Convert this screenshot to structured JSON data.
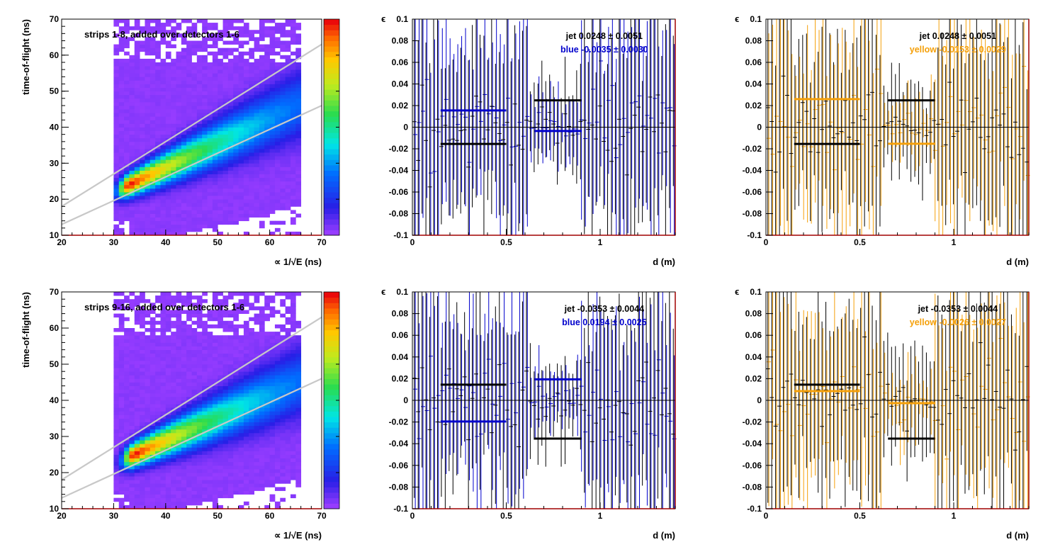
{
  "figure": {
    "rows": [
      {
        "heatmap": {
          "title": "strips 1-8, added over detectors 1-6",
          "xlabel": "∝ 1/√E (ns)",
          "ylabel": "time-of-flight (ns)"
        },
        "panels": [
          {
            "jet_label": "jet  0.0248 ± 0.0051",
            "beam_label": "blue -0.0035 ± 0.0030"
          },
          {
            "jet_label": "jet  0.0248 ± 0.0051",
            "beam_label": "yellow -0.0153 ± 0.0029"
          }
        ]
      },
      {
        "heatmap": {
          "title": "strips 9-16, added over detectors 1-6",
          "xlabel": "∝ 1/√E (ns)",
          "ylabel": "time-of-flight (ns)"
        },
        "panels": [
          {
            "jet_label": "jet -0.0353 ± 0.0044",
            "beam_label": "blue  0.0194 ± 0.0025"
          },
          {
            "jet_label": "jet -0.0353 ± 0.0044",
            "beam_label": "yellow -0.0026 ± 0.0027"
          }
        ]
      }
    ],
    "asym_xlabel": "d (m)",
    "asym_ylabel": "ϵ"
  },
  "chart_data": [
    {
      "type": "heatmap",
      "title": "strips 1-8, added over detectors 1-6",
      "xlabel": "∝ 1/√E (ns)",
      "ylabel": "time-of-flight (ns)",
      "xlim": [
        20,
        70
      ],
      "ylim": [
        10,
        70
      ],
      "xticks": [
        20,
        30,
        40,
        50,
        60,
        70
      ],
      "yticks": [
        10,
        20,
        30,
        40,
        50,
        60,
        70
      ],
      "populated_x_range": [
        30,
        65.5
      ],
      "band_peak": [
        33,
        24
      ],
      "band_end": [
        64,
        45
      ],
      "cut_lines": [
        {
          "from": [
            20,
            18
          ],
          "to": [
            70,
            63
          ]
        },
        {
          "from": [
            20,
            13
          ],
          "to": [
            70,
            46
          ]
        }
      ],
      "colorscale": "rainbow (violet low, red high)"
    },
    {
      "type": "scatter",
      "xlabel": "d (m)",
      "ylabel": "ϵ",
      "xlim": [
        0,
        1.4
      ],
      "ylim": [
        -0.1,
        0.1
      ],
      "xticks": [
        0,
        0.5,
        1
      ],
      "yticks": [
        -0.1,
        -0.08,
        -0.06,
        -0.04,
        -0.02,
        0,
        0.02,
        0.04,
        0.06,
        0.08,
        0.1
      ],
      "series": [
        {
          "name": "jet",
          "color": "#000000",
          "fits": [
            {
              "x": [
                0.15,
                0.5
              ],
              "y": -0.0155
            },
            {
              "x": [
                0.65,
                0.9
              ],
              "y": 0.0248
            }
          ]
        },
        {
          "name": "blue",
          "color": "#0000cc",
          "fits": [
            {
              "x": [
                0.15,
                0.5
              ],
              "y": 0.0155
            },
            {
              "x": [
                0.65,
                0.9
              ],
              "y": -0.0035
            }
          ]
        }
      ],
      "annotations": [
        "jet  0.0248 ± 0.0051",
        "blue -0.0035 ± 0.0030"
      ]
    },
    {
      "type": "scatter",
      "xlabel": "d (m)",
      "ylabel": "ϵ",
      "xlim": [
        0,
        1.4
      ],
      "ylim": [
        -0.1,
        0.1
      ],
      "xticks": [
        0,
        0.5,
        1
      ],
      "yticks": [
        -0.1,
        -0.08,
        -0.06,
        -0.04,
        -0.02,
        0,
        0.02,
        0.04,
        0.06,
        0.08,
        0.1
      ],
      "series": [
        {
          "name": "jet",
          "color": "#000000",
          "fits": [
            {
              "x": [
                0.15,
                0.5
              ],
              "y": -0.0155
            },
            {
              "x": [
                0.65,
                0.9
              ],
              "y": 0.0248
            }
          ]
        },
        {
          "name": "yellow",
          "color": "#f5a00a",
          "fits": [
            {
              "x": [
                0.15,
                0.5
              ],
              "y": 0.026
            },
            {
              "x": [
                0.65,
                0.9
              ],
              "y": -0.0153
            }
          ]
        }
      ],
      "annotations": [
        "jet  0.0248 ± 0.0051",
        "yellow -0.0153 ± 0.0029"
      ]
    },
    {
      "type": "heatmap",
      "title": "strips 9-16, added over detectors 1-6",
      "xlabel": "∝ 1/√E (ns)",
      "ylabel": "time-of-flight (ns)",
      "xlim": [
        20,
        70
      ],
      "ylim": [
        10,
        70
      ],
      "xticks": [
        20,
        30,
        40,
        50,
        60,
        70
      ],
      "yticks": [
        10,
        20,
        30,
        40,
        50,
        60,
        70
      ],
      "populated_x_range": [
        30,
        65.5
      ],
      "band_peak": [
        34,
        25
      ],
      "band_end": [
        64,
        44
      ],
      "cut_lines": [
        {
          "from": [
            20,
            18
          ],
          "to": [
            70,
            63
          ]
        },
        {
          "from": [
            20,
            13
          ],
          "to": [
            70,
            46
          ]
        }
      ],
      "colorscale": "rainbow (violet low, red high)"
    },
    {
      "type": "scatter",
      "xlabel": "d (m)",
      "ylabel": "ϵ",
      "xlim": [
        0,
        1.4
      ],
      "ylim": [
        -0.1,
        0.1
      ],
      "xticks": [
        0,
        0.5,
        1
      ],
      "yticks": [
        -0.1,
        -0.08,
        -0.06,
        -0.04,
        -0.02,
        0,
        0.02,
        0.04,
        0.06,
        0.08,
        0.1
      ],
      "series": [
        {
          "name": "jet",
          "color": "#000000",
          "fits": [
            {
              "x": [
                0.15,
                0.5
              ],
              "y": 0.0145
            },
            {
              "x": [
                0.65,
                0.9
              ],
              "y": -0.0353
            }
          ]
        },
        {
          "name": "blue",
          "color": "#0000cc",
          "fits": [
            {
              "x": [
                0.15,
                0.5
              ],
              "y": -0.0195
            },
            {
              "x": [
                0.65,
                0.9
              ],
              "y": 0.0194
            }
          ]
        }
      ],
      "annotations": [
        "jet -0.0353 ± 0.0044",
        "blue  0.0194 ± 0.0025"
      ]
    },
    {
      "type": "scatter",
      "xlabel": "d (m)",
      "ylabel": "ϵ",
      "xlim": [
        0,
        1.4
      ],
      "ylim": [
        -0.1,
        0.1
      ],
      "xticks": [
        0,
        0.5,
        1
      ],
      "yticks": [
        -0.1,
        -0.08,
        -0.06,
        -0.04,
        -0.02,
        0,
        0.02,
        0.04,
        0.06,
        0.08,
        0.1
      ],
      "series": [
        {
          "name": "jet",
          "color": "#000000",
          "fits": [
            {
              "x": [
                0.15,
                0.5
              ],
              "y": 0.0145
            },
            {
              "x": [
                0.65,
                0.9
              ],
              "y": -0.0353
            }
          ]
        },
        {
          "name": "yellow",
          "color": "#f5a00a",
          "fits": [
            {
              "x": [
                0.15,
                0.5
              ],
              "y": 0.0085
            },
            {
              "x": [
                0.65,
                0.9
              ],
              "y": -0.0026
            }
          ]
        }
      ],
      "annotations": [
        "jet -0.0353 ± 0.0044",
        "yellow -0.0026 ± 0.0027"
      ]
    }
  ]
}
